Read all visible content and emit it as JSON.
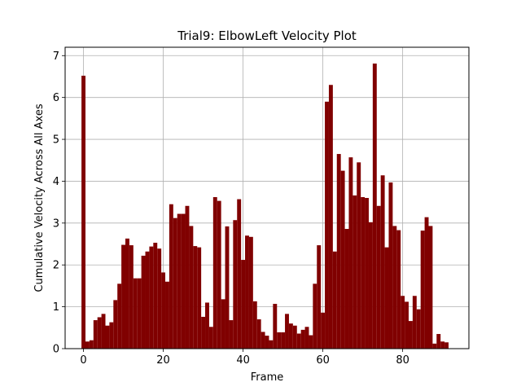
{
  "chart_data": {
    "type": "bar",
    "title": "Trial9: ElbowLeft Velocity Plot",
    "xlabel": "Frame",
    "ylabel": "Cumulative Velocity Across All Axes",
    "xlim": [
      -4.6,
      96.6
    ],
    "ylim": [
      0,
      7.2
    ],
    "xticks": [
      0,
      20,
      40,
      60,
      80
    ],
    "yticks": [
      0,
      1,
      2,
      3,
      4,
      5,
      6,
      7
    ],
    "grid": true,
    "bar_color": "#800000",
    "x": [
      0,
      1,
      2,
      3,
      4,
      5,
      6,
      7,
      8,
      9,
      10,
      11,
      12,
      13,
      14,
      15,
      16,
      17,
      18,
      19,
      20,
      21,
      22,
      23,
      24,
      25,
      26,
      27,
      28,
      29,
      30,
      31,
      32,
      33,
      34,
      35,
      36,
      37,
      38,
      39,
      40,
      41,
      42,
      43,
      44,
      45,
      46,
      47,
      48,
      49,
      50,
      51,
      52,
      53,
      54,
      55,
      56,
      57,
      58,
      59,
      60,
      61,
      62,
      63,
      64,
      65,
      66,
      67,
      68,
      69,
      70,
      71,
      72,
      73,
      74,
      75,
      76,
      77,
      78,
      79,
      80,
      81,
      82,
      83,
      84,
      85,
      86,
      87,
      88,
      89,
      90,
      91
    ],
    "values": [
      6.52,
      0.17,
      0.2,
      0.68,
      0.75,
      0.83,
      0.55,
      0.63,
      1.16,
      1.55,
      2.48,
      2.63,
      2.47,
      1.68,
      1.68,
      2.22,
      2.32,
      2.44,
      2.53,
      2.39,
      1.82,
      1.6,
      3.45,
      3.12,
      3.22,
      3.22,
      3.41,
      2.93,
      2.45,
      2.42,
      0.76,
      1.1,
      0.52,
      3.62,
      3.53,
      1.18,
      2.92,
      0.68,
      3.07,
      3.57,
      2.12,
      2.7,
      2.67,
      1.13,
      0.7,
      0.4,
      0.31,
      0.2,
      1.07,
      0.39,
      0.39,
      0.83,
      0.6,
      0.55,
      0.36,
      0.45,
      0.52,
      0.32,
      1.55,
      2.47,
      0.86,
      5.9,
      6.3,
      2.32,
      4.65,
      4.25,
      2.86,
      4.57,
      3.66,
      4.45,
      3.62,
      3.6,
      3.02,
      6.81,
      3.41,
      4.14,
      2.42,
      3.97,
      2.93,
      2.83,
      1.26,
      1.12,
      0.66,
      1.26,
      0.94,
      2.82,
      3.14,
      2.93,
      0.12,
      0.35,
      0.17,
      0.15
    ]
  }
}
